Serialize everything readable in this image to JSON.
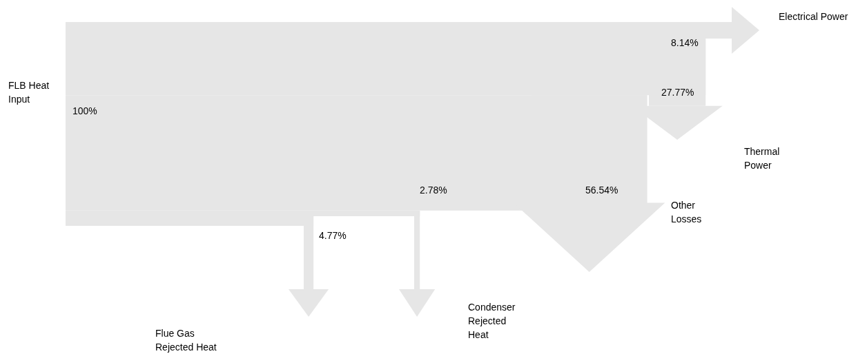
{
  "chart_data": {
    "type": "other",
    "categories": [
      "FLB Heat Input",
      "Electrical Power",
      "Thermal Power",
      "Other Losses",
      "Condenser Rejected Heat",
      "Flue Gas Rejected Heat"
    ],
    "values": [
      100,
      8.14,
      27.77,
      56.54,
      2.78,
      4.77
    ],
    "value_labels": [
      "100%",
      "8.14%",
      "27.77%",
      "56.54%",
      "2.78%",
      "4.77%"
    ]
  }
}
